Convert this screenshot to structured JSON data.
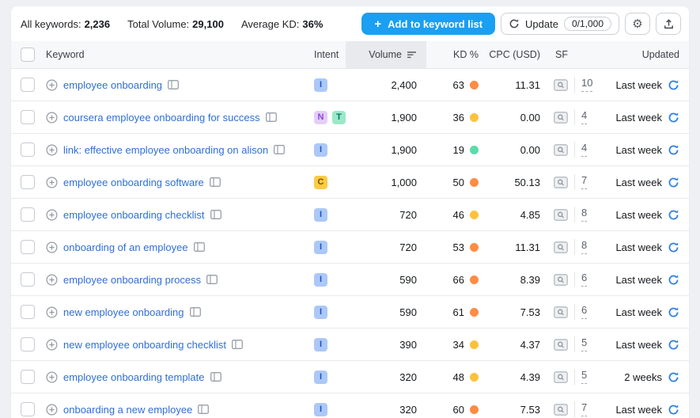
{
  "summary": {
    "all_keywords_label": "All keywords:",
    "all_keywords_value": "2,236",
    "total_volume_label": "Total Volume:",
    "total_volume_value": "29,100",
    "average_kd_label": "Average KD:",
    "average_kd_value": "36%"
  },
  "toolbar": {
    "add_button_label": "Add to keyword list",
    "update_label": "Update",
    "update_quota": "0/1,000"
  },
  "icons": {
    "plus": "+",
    "gear": "⚙"
  },
  "table": {
    "columns": {
      "keyword": "Keyword",
      "intent": "Intent",
      "volume": "Volume",
      "kd": "KD %",
      "cpc": "CPC (USD)",
      "sf": "SF",
      "updated": "Updated"
    },
    "rows": [
      {
        "keyword": "employee onboarding",
        "intents": [
          "I"
        ],
        "volume": "2,400",
        "kd": "63",
        "kd_color": "orange",
        "cpc": "11.31",
        "sf": "10",
        "updated": "Last week"
      },
      {
        "keyword": "coursera employee onboarding for success",
        "intents": [
          "N",
          "T"
        ],
        "volume": "1,900",
        "kd": "36",
        "kd_color": "yellow",
        "cpc": "0.00",
        "sf": "4",
        "updated": "Last week"
      },
      {
        "keyword": "link: effective employee onboarding on alison",
        "intents": [
          "I"
        ],
        "volume": "1,900",
        "kd": "19",
        "kd_color": "green",
        "cpc": "0.00",
        "sf": "4",
        "updated": "Last week"
      },
      {
        "keyword": "employee onboarding software",
        "intents": [
          "C"
        ],
        "volume": "1,000",
        "kd": "50",
        "kd_color": "orange",
        "cpc": "50.13",
        "sf": "7",
        "updated": "Last week"
      },
      {
        "keyword": "employee onboarding checklist",
        "intents": [
          "I"
        ],
        "volume": "720",
        "kd": "46",
        "kd_color": "yellow",
        "cpc": "4.85",
        "sf": "8",
        "updated": "Last week"
      },
      {
        "keyword": "onboarding of an employee",
        "intents": [
          "I"
        ],
        "volume": "720",
        "kd": "53",
        "kd_color": "orange",
        "cpc": "11.31",
        "sf": "8",
        "updated": "Last week"
      },
      {
        "keyword": "employee onboarding process",
        "intents": [
          "I"
        ],
        "volume": "590",
        "kd": "66",
        "kd_color": "orange",
        "cpc": "8.39",
        "sf": "6",
        "updated": "Last week"
      },
      {
        "keyword": "new employee onboarding",
        "intents": [
          "I"
        ],
        "volume": "590",
        "kd": "61",
        "kd_color": "orange",
        "cpc": "7.53",
        "sf": "6",
        "updated": "Last week"
      },
      {
        "keyword": "new employee onboarding checklist",
        "intents": [
          "I"
        ],
        "volume": "390",
        "kd": "34",
        "kd_color": "yellow",
        "cpc": "4.37",
        "sf": "5",
        "updated": "Last week"
      },
      {
        "keyword": "employee onboarding template",
        "intents": [
          "I"
        ],
        "volume": "320",
        "kd": "48",
        "kd_color": "yellow",
        "cpc": "4.39",
        "sf": "5",
        "updated": "2 weeks"
      },
      {
        "keyword": "onboarding a new employee",
        "intents": [
          "I"
        ],
        "volume": "320",
        "kd": "60",
        "kd_color": "orange",
        "cpc": "7.53",
        "sf": "7",
        "updated": "Last week"
      }
    ]
  },
  "colors": {
    "accent_blue": "#1a9ff2",
    "link_blue": "#2f6fd6",
    "refresh_blue": "#2b7fe3",
    "kd": {
      "green": "#59ddaa",
      "yellow": "#fdc23c",
      "orange": "#ff8c43"
    },
    "intent": {
      "I": {
        "bg": "#abc8f7",
        "fg": "#2050c8"
      },
      "N": {
        "bg": "#e4cdf9",
        "fg": "#8a49d6"
      },
      "T": {
        "bg": "#9be8c8",
        "fg": "#007a60"
      },
      "C": {
        "bg": "#fccb44",
        "fg": "#7a5300"
      }
    }
  }
}
